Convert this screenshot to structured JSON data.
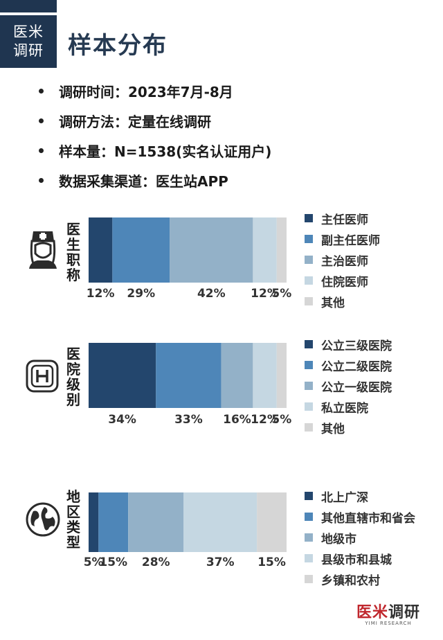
{
  "brand": {
    "line1": "医米",
    "line2": "调研"
  },
  "page_title": "样本分布",
  "bullets": [
    "调研时间：2023年7月-8月",
    "调研方法：定量在线调研",
    "样本量：N=1538(实名认证用户)",
    "数据采集渠道：医生站APP"
  ],
  "footer": {
    "logo_red": "医米",
    "logo_black": "调研",
    "logo_sub": "YIMI RESEARCH"
  },
  "chart_data": [
    {
      "type": "bar",
      "stacked": true,
      "orientation": "horizontal",
      "label": "医生职称",
      "icon": "nurse-icon",
      "series": [
        {
          "name": "主任医师",
          "value": 12,
          "label": "12%",
          "color": "#23466d"
        },
        {
          "name": "副主任医师",
          "value": 29,
          "label": "29%",
          "color": "#4e86b8"
        },
        {
          "name": "主治医师",
          "value": 42,
          "label": "42%",
          "color": "#93b1c8"
        },
        {
          "name": "住院医师",
          "value": 12,
          "label": "12%",
          "color": "#c5d7e2"
        },
        {
          "name": "其他",
          "value": 5,
          "label": "5%",
          "color": "#d6d6d6"
        }
      ]
    },
    {
      "type": "bar",
      "stacked": true,
      "orientation": "horizontal",
      "label": "医院级别",
      "icon": "hospital-icon",
      "series": [
        {
          "name": "公立三级医院",
          "value": 34,
          "label": "34%",
          "color": "#23466d"
        },
        {
          "name": "公立二级医院",
          "value": 33,
          "label": "33%",
          "color": "#4e86b8"
        },
        {
          "name": "公立一级医院",
          "value": 16,
          "label": "16%",
          "color": "#93b1c8"
        },
        {
          "name": "私立医院",
          "value": 12,
          "label": "12%",
          "color": "#c5d7e2"
        },
        {
          "name": "其他",
          "value": 5,
          "label": "5%",
          "color": "#d6d6d6"
        }
      ]
    },
    {
      "type": "bar",
      "stacked": true,
      "orientation": "horizontal",
      "label": "地区类型",
      "icon": "globe-icon",
      "series": [
        {
          "name": "北上广深",
          "value": 5,
          "label": "5%",
          "color": "#23466d"
        },
        {
          "name": "其他直辖市和省会",
          "value": 15,
          "label": "15%",
          "color": "#4e86b8"
        },
        {
          "name": "地级市",
          "value": 28,
          "label": "28%",
          "color": "#93b1c8"
        },
        {
          "name": "县级市和县城",
          "value": 37,
          "label": "37%",
          "color": "#c5d7e2"
        },
        {
          "name": "乡镇和农村",
          "value": 15,
          "label": "15%",
          "color": "#d6d6d6"
        }
      ]
    }
  ]
}
